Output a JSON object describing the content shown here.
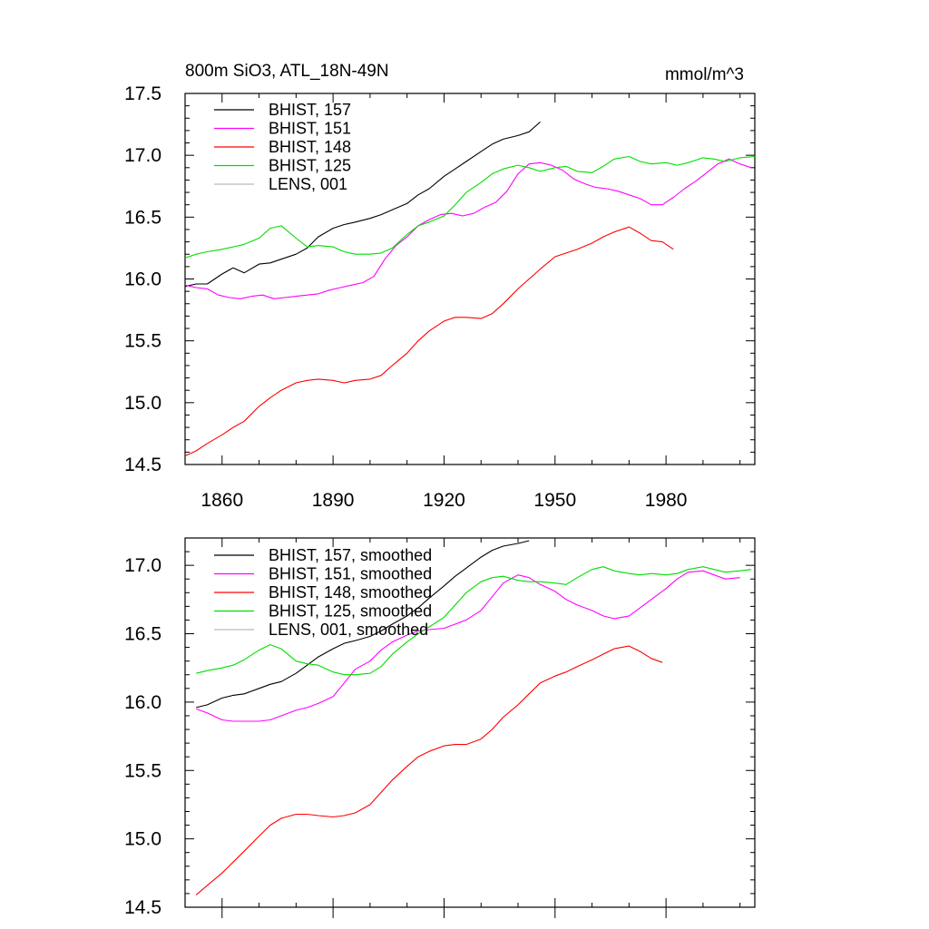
{
  "title_left": "800m SiO3, ATL_18N-49N",
  "title_right": "mmol/m^3",
  "colors": {
    "BHIST_157": "#000000",
    "BHIST_151": "#ff00ff",
    "BHIST_148": "#ff0000",
    "BHIST_125": "#00dd00",
    "LENS_001": "#bbbbbb"
  },
  "chart_data": [
    {
      "type": "line",
      "panel": "top",
      "title": "800m SiO3, ATL_18N-49N",
      "units": "mmol/m^3",
      "xlim": [
        1850,
        2004
      ],
      "ylim": [
        14.5,
        17.5
      ],
      "x_ticks": [
        1860,
        1890,
        1920,
        1950,
        1980
      ],
      "x_tick_labels": [
        "1860",
        "1890",
        "1920",
        "1950",
        "1980"
      ],
      "y_ticks": [
        14.5,
        15.0,
        15.5,
        16.0,
        16.5,
        17.0,
        17.5
      ],
      "y_tick_labels": [
        "14.5",
        "15.0",
        "15.5",
        "16.0",
        "16.5",
        "17.0",
        "17.5"
      ],
      "legend_position": "top-left",
      "series": [
        {
          "name": "BHIST, 157",
          "color_key": "BHIST_157",
          "x": [
            1850,
            1853,
            1856,
            1860,
            1863,
            1866,
            1870,
            1873,
            1876,
            1880,
            1883,
            1886,
            1890,
            1893,
            1896,
            1900,
            1903,
            1906,
            1910,
            1913,
            1916,
            1920,
            1923,
            1926,
            1930,
            1933,
            1936,
            1940,
            1943,
            1946
          ],
          "values": [
            15.94,
            15.96,
            15.96,
            16.04,
            16.09,
            16.05,
            16.12,
            16.13,
            16.16,
            16.2,
            16.25,
            16.34,
            16.41,
            16.44,
            16.46,
            16.49,
            16.52,
            16.56,
            16.61,
            16.68,
            16.73,
            16.83,
            16.89,
            16.95,
            17.03,
            17.09,
            17.13,
            17.16,
            17.19,
            17.27
          ]
        },
        {
          "name": "BHIST, 151",
          "color_key": "BHIST_151",
          "x": [
            1850,
            1853,
            1856,
            1859,
            1862,
            1865,
            1868,
            1871,
            1874,
            1877,
            1880,
            1883,
            1886,
            1889,
            1892,
            1895,
            1898,
            1901,
            1904,
            1907,
            1910,
            1913,
            1916,
            1919,
            1922,
            1925,
            1928,
            1931,
            1934,
            1937,
            1940,
            1943,
            1946,
            1949,
            1952,
            1955,
            1958,
            1961,
            1964,
            1967,
            1970,
            1973,
            1976,
            1979,
            1982,
            1985,
            1988,
            1991,
            1994,
            1997,
            2000,
            2003
          ],
          "values": [
            15.95,
            15.93,
            15.92,
            15.87,
            15.85,
            15.84,
            15.86,
            15.87,
            15.84,
            15.85,
            15.86,
            15.87,
            15.88,
            15.91,
            15.93,
            15.95,
            15.97,
            16.02,
            16.16,
            16.27,
            16.34,
            16.43,
            16.48,
            16.52,
            16.53,
            16.51,
            16.53,
            16.58,
            16.62,
            16.71,
            16.85,
            16.93,
            16.94,
            16.92,
            16.88,
            16.81,
            16.77,
            16.74,
            16.73,
            16.71,
            16.68,
            16.65,
            16.6,
            16.6,
            16.66,
            16.73,
            16.79,
            16.86,
            16.93,
            16.97,
            16.93,
            16.9
          ]
        },
        {
          "name": "BHIST, 148",
          "color_key": "BHIST_148",
          "x": [
            1850,
            1853,
            1856,
            1860,
            1863,
            1866,
            1870,
            1873,
            1876,
            1880,
            1883,
            1886,
            1890,
            1893,
            1896,
            1900,
            1903,
            1906,
            1910,
            1913,
            1916,
            1920,
            1923,
            1926,
            1930,
            1933,
            1936,
            1940,
            1943,
            1946,
            1950,
            1953,
            1956,
            1960,
            1963,
            1966,
            1970,
            1973,
            1976,
            1979,
            1982
          ],
          "values": [
            14.57,
            14.61,
            14.67,
            14.74,
            14.8,
            14.85,
            14.97,
            15.04,
            15.1,
            15.16,
            15.18,
            15.19,
            15.18,
            15.16,
            15.18,
            15.19,
            15.22,
            15.3,
            15.4,
            15.5,
            15.58,
            15.66,
            15.69,
            15.69,
            15.68,
            15.72,
            15.8,
            15.92,
            16.0,
            16.08,
            16.18,
            16.21,
            16.24,
            16.29,
            16.34,
            16.38,
            16.42,
            16.37,
            16.31,
            16.3,
            16.24
          ]
        },
        {
          "name": "BHIST, 125",
          "color_key": "BHIST_125",
          "x": [
            1850,
            1853,
            1856,
            1860,
            1863,
            1866,
            1870,
            1873,
            1876,
            1880,
            1883,
            1886,
            1890,
            1893,
            1896,
            1900,
            1903,
            1906,
            1910,
            1913,
            1916,
            1920,
            1923,
            1926,
            1930,
            1933,
            1936,
            1940,
            1943,
            1946,
            1950,
            1953,
            1956,
            1960,
            1963,
            1966,
            1970,
            1973,
            1976,
            1980,
            1983,
            1986,
            1990,
            1993,
            1996,
            2000,
            2004
          ],
          "values": [
            16.17,
            16.2,
            16.22,
            16.24,
            16.26,
            16.28,
            16.33,
            16.41,
            16.43,
            16.33,
            16.26,
            16.27,
            16.26,
            16.22,
            16.2,
            16.2,
            16.21,
            16.25,
            16.36,
            16.43,
            16.46,
            16.51,
            16.6,
            16.7,
            16.78,
            16.85,
            16.89,
            16.92,
            16.9,
            16.87,
            16.9,
            16.91,
            16.87,
            16.86,
            16.91,
            16.97,
            16.99,
            16.95,
            16.93,
            16.94,
            16.92,
            16.94,
            16.98,
            16.97,
            16.95,
            16.98,
            16.99
          ]
        },
        {
          "name": "LENS, 001",
          "color_key": "LENS_001",
          "x": [],
          "values": []
        }
      ]
    },
    {
      "type": "line",
      "panel": "bottom",
      "xlim": [
        1850,
        2004
      ],
      "ylim": [
        14.5,
        17.2
      ],
      "y_ticks": [
        14.5,
        15.0,
        15.5,
        16.0,
        16.5,
        17.0
      ],
      "y_tick_labels": [
        "14.5",
        "15.0",
        "15.5",
        "16.0",
        "16.5",
        "17.0"
      ],
      "legend_position": "top-left",
      "series": [
        {
          "name": "BHIST, 157, smoothed",
          "color_key": "BHIST_157",
          "x": [
            1853,
            1856,
            1860,
            1863,
            1866,
            1870,
            1873,
            1876,
            1880,
            1883,
            1886,
            1890,
            1893,
            1896,
            1900,
            1903,
            1906,
            1910,
            1913,
            1916,
            1920,
            1923,
            1926,
            1930,
            1933,
            1936,
            1940,
            1943
          ],
          "values": [
            15.96,
            15.98,
            16.03,
            16.05,
            16.06,
            16.1,
            16.13,
            16.15,
            16.21,
            16.27,
            16.33,
            16.39,
            16.43,
            16.45,
            16.48,
            16.52,
            16.57,
            16.63,
            16.69,
            16.76,
            16.85,
            16.92,
            16.98,
            17.06,
            17.11,
            17.14,
            17.16,
            17.18
          ]
        },
        {
          "name": "BHIST, 151, smoothed",
          "color_key": "BHIST_151",
          "x": [
            1853,
            1856,
            1860,
            1863,
            1866,
            1870,
            1873,
            1876,
            1880,
            1883,
            1886,
            1890,
            1893,
            1896,
            1900,
            1903,
            1906,
            1910,
            1913,
            1916,
            1920,
            1923,
            1926,
            1930,
            1933,
            1936,
            1940,
            1943,
            1946,
            1950,
            1953,
            1956,
            1960,
            1963,
            1966,
            1970,
            1973,
            1976,
            1980,
            1983,
            1986,
            1990,
            1993,
            1996,
            2000
          ],
          "values": [
            15.95,
            15.92,
            15.87,
            15.86,
            15.86,
            15.86,
            15.87,
            15.9,
            15.94,
            15.96,
            15.99,
            16.04,
            16.14,
            16.24,
            16.3,
            16.38,
            16.44,
            16.49,
            16.52,
            16.53,
            16.54,
            16.57,
            16.6,
            16.67,
            16.77,
            16.87,
            16.93,
            16.91,
            16.86,
            16.81,
            16.75,
            16.71,
            16.67,
            16.63,
            16.61,
            16.63,
            16.69,
            16.75,
            16.83,
            16.9,
            16.95,
            16.96,
            16.93,
            16.9,
            16.91
          ]
        },
        {
          "name": "BHIST, 148, smoothed",
          "color_key": "BHIST_148",
          "x": [
            1853,
            1856,
            1860,
            1863,
            1866,
            1870,
            1873,
            1876,
            1880,
            1883,
            1886,
            1890,
            1893,
            1896,
            1900,
            1903,
            1906,
            1910,
            1913,
            1916,
            1920,
            1923,
            1926,
            1930,
            1933,
            1936,
            1940,
            1943,
            1946,
            1950,
            1953,
            1956,
            1960,
            1963,
            1966,
            1970,
            1973,
            1976,
            1979
          ],
          "values": [
            14.59,
            14.66,
            14.75,
            14.83,
            14.91,
            15.02,
            15.1,
            15.15,
            15.18,
            15.18,
            15.17,
            15.16,
            15.17,
            15.19,
            15.25,
            15.34,
            15.43,
            15.53,
            15.6,
            15.64,
            15.68,
            15.69,
            15.69,
            15.73,
            15.8,
            15.89,
            15.98,
            16.06,
            16.14,
            16.19,
            16.22,
            16.26,
            16.31,
            16.35,
            16.39,
            16.41,
            16.37,
            16.32,
            16.29
          ]
        },
        {
          "name": "BHIST, 125, smoothed",
          "color_key": "BHIST_125",
          "x": [
            1853,
            1856,
            1860,
            1863,
            1866,
            1870,
            1873,
            1876,
            1880,
            1883,
            1886,
            1890,
            1893,
            1896,
            1900,
            1903,
            1906,
            1910,
            1913,
            1916,
            1920,
            1923,
            1926,
            1930,
            1933,
            1936,
            1940,
            1943,
            1946,
            1950,
            1953,
            1956,
            1960,
            1963,
            1966,
            1970,
            1973,
            1976,
            1980,
            1983,
            1986,
            1990,
            1993,
            1996,
            2000,
            2003
          ],
          "values": [
            16.21,
            16.23,
            16.25,
            16.27,
            16.31,
            16.38,
            16.42,
            16.39,
            16.3,
            16.28,
            16.27,
            16.22,
            16.2,
            16.2,
            16.21,
            16.26,
            16.35,
            16.44,
            16.5,
            16.55,
            16.62,
            16.71,
            16.8,
            16.88,
            16.91,
            16.92,
            16.89,
            16.88,
            16.88,
            16.87,
            16.86,
            16.91,
            16.97,
            16.99,
            16.96,
            16.94,
            16.93,
            16.94,
            16.93,
            16.94,
            16.97,
            16.99,
            16.97,
            16.95,
            16.96,
            16.97
          ]
        },
        {
          "name": "LENS, 001, smoothed",
          "color_key": "LENS_001",
          "x": [],
          "values": []
        }
      ]
    }
  ]
}
